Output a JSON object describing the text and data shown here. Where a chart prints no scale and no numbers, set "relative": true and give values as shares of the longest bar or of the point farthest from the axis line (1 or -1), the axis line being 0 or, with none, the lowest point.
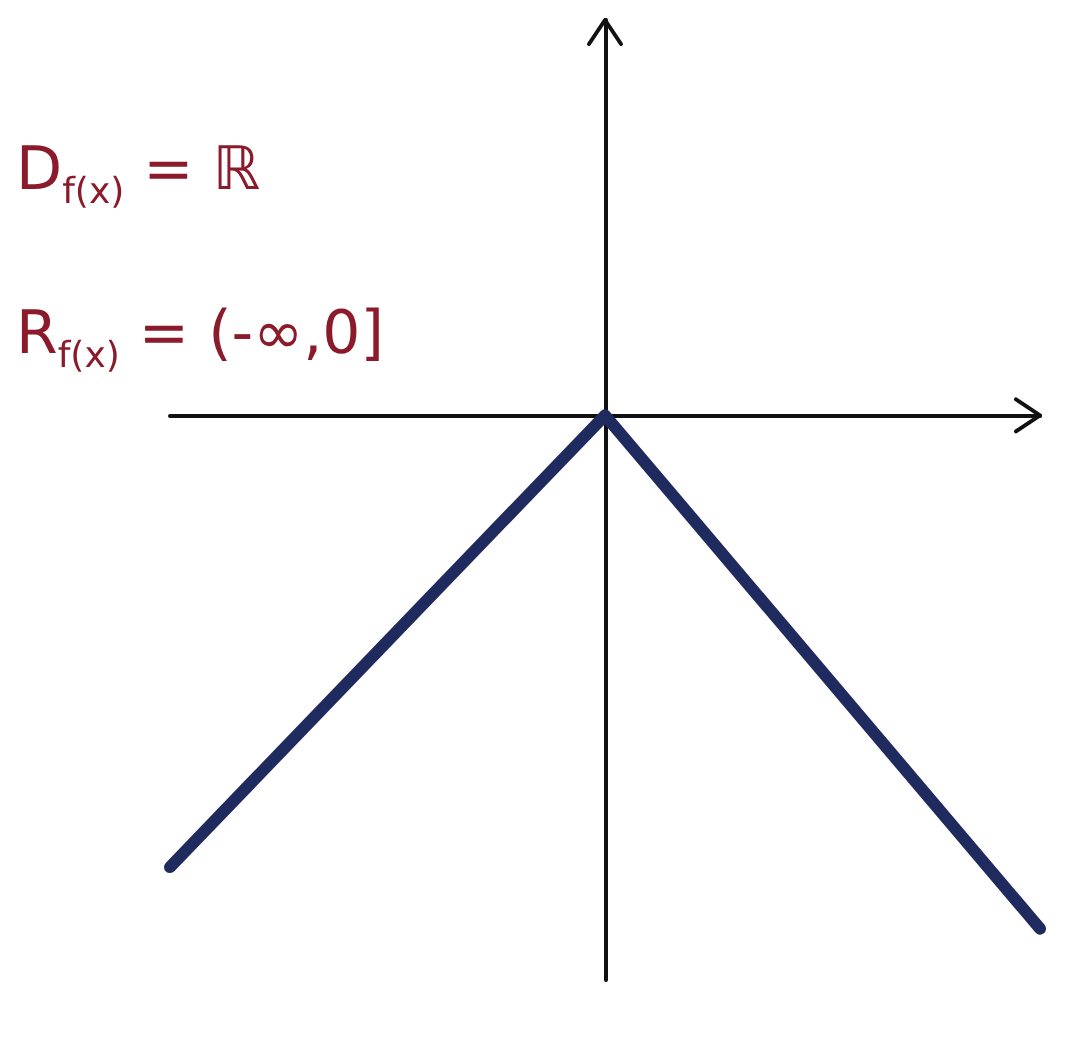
{
  "chart_data": {
    "type": "line",
    "relative": true,
    "categories": [
      null,
      null,
      null
    ],
    "series": [
      {
        "color": "#1f2a5e",
        "values": [
          -0.88,
          0,
          -1
        ]
      }
    ],
    "marker": "none",
    "line_style": "solid",
    "grid": false,
    "annotations": [
      "D$_{f(x)}$ = ℝ",
      "R$_{f(x)}$ = (-∞,0]"
    ]
  }
}
